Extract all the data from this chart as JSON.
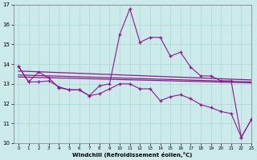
{
  "x": [
    0,
    1,
    2,
    3,
    4,
    5,
    6,
    7,
    8,
    9,
    10,
    11,
    12,
    13,
    14,
    15,
    16,
    17,
    18,
    19,
    20,
    21,
    22,
    23
  ],
  "line_upper": [
    13.9,
    13.1,
    13.6,
    13.3,
    12.8,
    12.7,
    12.7,
    12.4,
    12.9,
    13.0,
    15.5,
    16.8,
    15.1,
    15.35,
    15.35,
    14.4,
    14.6,
    13.85,
    13.4,
    13.4,
    13.15,
    13.15,
    10.3,
    11.2
  ],
  "line_lower": [
    13.9,
    13.1,
    13.1,
    13.15,
    12.85,
    12.7,
    12.7,
    12.4,
    12.5,
    12.75,
    13.0,
    13.0,
    12.75,
    12.75,
    12.15,
    12.35,
    12.45,
    12.25,
    11.95,
    11.8,
    11.6,
    11.5,
    10.3,
    11.2
  ],
  "trend1_x": [
    0,
    23
  ],
  "trend1_y": [
    13.65,
    13.2
  ],
  "trend2_x": [
    0,
    23
  ],
  "trend2_y": [
    13.45,
    13.1
  ],
  "trend3_x": [
    0,
    23
  ],
  "trend3_y": [
    13.35,
    13.05
  ],
  "bg_color": "#cdeaea",
  "line_color": "#8b1a8b",
  "grid_color": "#a8d8d8",
  "xlabel": "Windchill (Refroidissement éolien,°C)",
  "ylim": [
    10,
    17
  ],
  "xlim": [
    -0.5,
    23
  ],
  "yticks": [
    10,
    11,
    12,
    13,
    14,
    15,
    16,
    17
  ],
  "xticks": [
    0,
    1,
    2,
    3,
    4,
    5,
    6,
    7,
    8,
    9,
    10,
    11,
    12,
    13,
    14,
    15,
    16,
    17,
    18,
    19,
    20,
    21,
    22,
    23
  ]
}
